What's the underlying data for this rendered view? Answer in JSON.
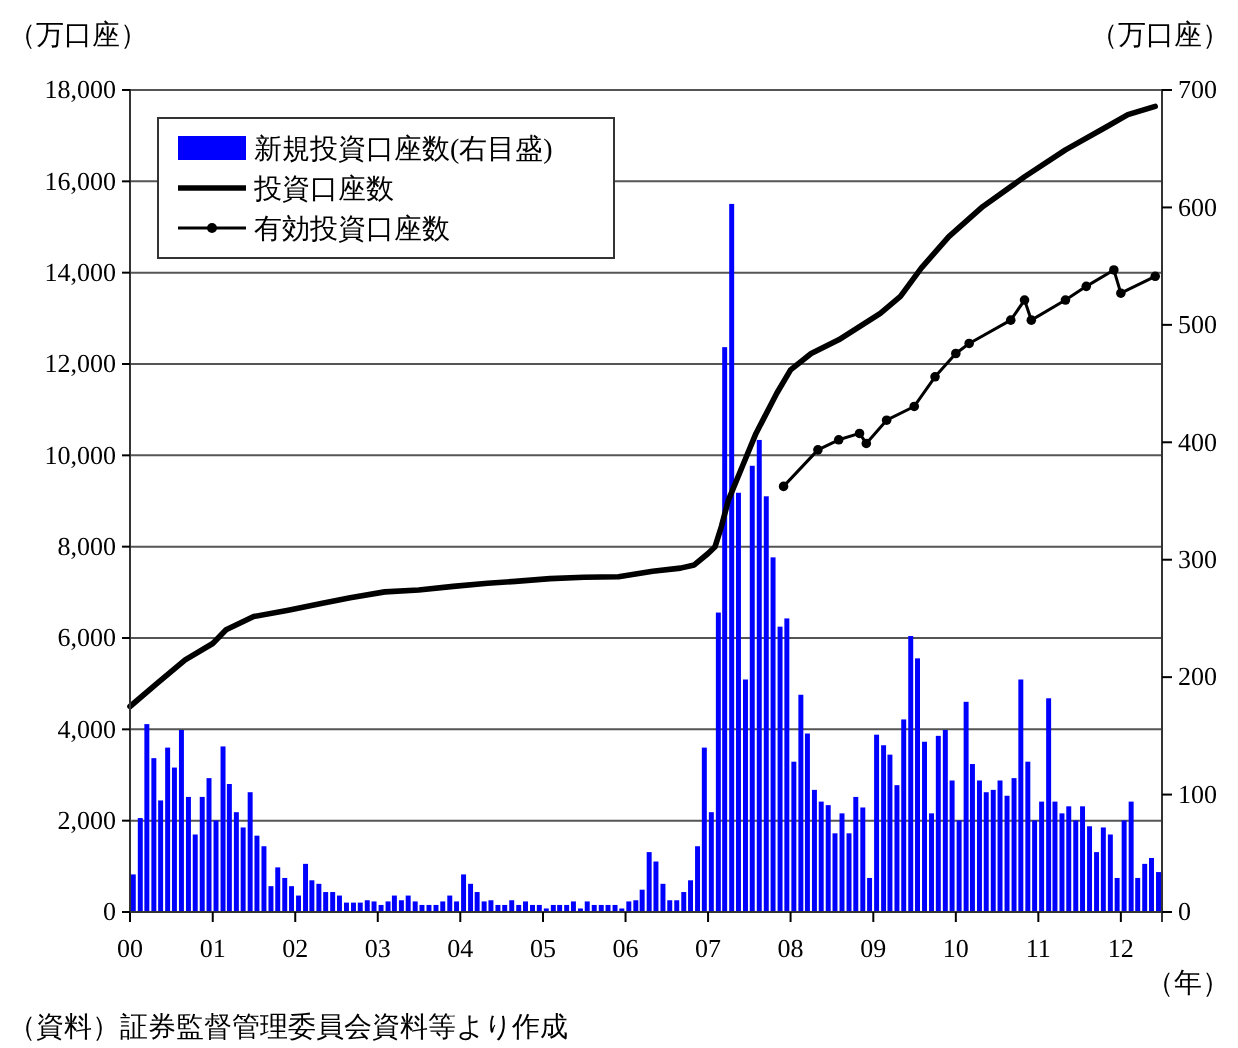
{
  "chart_data": {
    "type": "bar",
    "ylabel": "（万口座）",
    "y2label": "（万口座）",
    "xlabel": "（年）",
    "annotations": [
      "（資料）証券監督管理委員会資料等より作成"
    ],
    "xlim": [
      "2000-01",
      "2012-07"
    ],
    "xticks": [
      {
        "value": "2000-01",
        "label": "00"
      },
      {
        "value": "2001-01",
        "label": "01"
      },
      {
        "value": "2002-01",
        "label": "02"
      },
      {
        "value": "2003-01",
        "label": "03"
      },
      {
        "value": "2004-01",
        "label": "04"
      },
      {
        "value": "2005-01",
        "label": "05"
      },
      {
        "value": "2006-01",
        "label": "06"
      },
      {
        "value": "2007-01",
        "label": "07"
      },
      {
        "value": "2008-01",
        "label": "08"
      },
      {
        "value": "2009-01",
        "label": "09"
      },
      {
        "value": "2010-01",
        "label": "10"
      },
      {
        "value": "2011-01",
        "label": "11"
      },
      {
        "value": "2012-01",
        "label": "12"
      }
    ],
    "ylim": [
      0,
      18000
    ],
    "yticks": [
      0,
      {
        "value": 2000,
        "label": "2,000"
      },
      {
        "value": 4000,
        "label": "4,000"
      },
      {
        "value": 6000,
        "label": "6,000"
      },
      {
        "value": 8000,
        "label": "8,000"
      },
      {
        "value": 10000,
        "label": "10,000"
      },
      {
        "value": 12000,
        "label": "12,000"
      },
      {
        "value": 14000,
        "label": "14,000"
      },
      {
        "value": 16000,
        "label": "16,000"
      },
      {
        "value": 18000,
        "label": "18,000"
      }
    ],
    "y2lim": [
      0,
      700
    ],
    "y2ticks": [
      0,
      100,
      200,
      300,
      400,
      500,
      600,
      700
    ],
    "grid": "y",
    "legend": "top left",
    "series": [
      {
        "name": "新規投資口座数(右目盛)",
        "axis": "y2",
        "color": "#0000ff",
        "x": [
          "2000-01",
          "2000-02",
          "2000-03",
          "2000-04",
          "2000-05",
          "2000-06",
          "2000-07",
          "2000-08",
          "2000-09",
          "2000-10",
          "2000-11",
          "2000-12",
          "2001-01",
          "2001-02",
          "2001-03",
          "2001-04",
          "2001-05",
          "2001-06",
          "2001-07",
          "2001-08",
          "2001-09",
          "2001-10",
          "2001-11",
          "2001-12",
          "2002-01",
          "2002-02",
          "2002-03",
          "2002-04",
          "2002-05",
          "2002-06",
          "2002-07",
          "2002-08",
          "2002-09",
          "2002-10",
          "2002-11",
          "2002-12",
          "2003-01",
          "2003-02",
          "2003-03",
          "2003-04",
          "2003-05",
          "2003-06",
          "2003-07",
          "2003-08",
          "2003-09",
          "2003-10",
          "2003-11",
          "2003-12",
          "2004-01",
          "2004-02",
          "2004-03",
          "2004-04",
          "2004-05",
          "2004-06",
          "2004-07",
          "2004-08",
          "2004-09",
          "2004-10",
          "2004-11",
          "2004-12",
          "2005-01",
          "2005-02",
          "2005-03",
          "2005-04",
          "2005-05",
          "2005-06",
          "2005-07",
          "2005-08",
          "2005-09",
          "2005-10",
          "2005-11",
          "2005-12",
          "2006-01",
          "2006-02",
          "2006-03",
          "2006-04",
          "2006-05",
          "2006-06",
          "2006-07",
          "2006-08",
          "2006-09",
          "2006-10",
          "2006-11",
          "2006-12",
          "2007-01",
          "2007-02",
          "2007-03",
          "2007-04",
          "2007-05",
          "2007-06",
          "2007-07",
          "2007-08",
          "2007-09",
          "2007-10",
          "2007-11",
          "2007-12",
          "2008-01",
          "2008-02",
          "2008-03",
          "2008-04",
          "2008-05",
          "2008-06",
          "2008-07",
          "2008-08",
          "2008-09",
          "2008-10",
          "2008-11",
          "2008-12",
          "2009-01",
          "2009-02",
          "2009-03",
          "2009-04",
          "2009-05",
          "2009-06",
          "2009-07",
          "2009-08",
          "2009-09",
          "2009-10",
          "2009-11",
          "2009-12",
          "2010-01",
          "2010-02",
          "2010-03",
          "2010-04",
          "2010-05",
          "2010-06",
          "2010-07",
          "2010-08",
          "2010-09",
          "2010-10",
          "2010-11",
          "2010-12",
          "2011-01",
          "2011-02",
          "2011-03",
          "2011-04",
          "2011-05",
          "2011-06",
          "2011-07",
          "2011-08",
          "2011-09",
          "2011-10",
          "2011-11",
          "2011-12",
          "2012-01",
          "2012-02",
          "2012-03",
          "2012-04",
          "2012-05",
          "2012-06"
        ],
        "values": [
          32,
          80,
          160,
          131,
          95,
          140,
          123,
          155,
          98,
          66,
          98,
          114,
          78,
          141,
          109,
          85,
          72,
          102,
          65,
          56,
          22,
          38,
          29,
          22,
          14,
          41,
          27,
          24,
          17,
          17,
          14,
          8,
          8,
          8,
          10,
          9,
          6,
          9,
          14,
          10,
          14,
          9,
          6,
          6,
          6,
          9,
          14,
          9,
          32,
          24,
          17,
          9,
          10,
          6,
          6,
          10,
          6,
          9,
          6,
          6,
          3,
          6,
          6,
          6,
          9,
          3,
          9,
          6,
          6,
          6,
          6,
          3,
          9,
          10,
          19,
          51,
          43,
          24,
          10,
          10,
          17,
          27,
          56,
          140,
          85,
          255,
          481,
          603,
          357,
          198,
          380,
          402,
          354,
          302,
          243,
          250,
          128,
          185,
          152,
          104,
          94,
          91,
          67,
          84,
          67,
          98,
          89,
          29,
          151,
          142,
          134,
          108,
          164,
          235,
          216,
          145,
          84,
          150,
          155,
          112,
          78,
          179,
          126,
          112,
          102,
          104,
          112,
          99,
          114,
          198,
          128,
          78,
          94,
          182,
          94,
          84,
          90,
          78,
          90,
          73,
          51,
          72,
          66,
          29,
          78,
          94,
          29,
          41,
          46,
          34
        ]
      },
      {
        "name": "投資口座数",
        "type": "line",
        "color": "#000000",
        "x": [
          "2000-01",
          "2000-05",
          "2000-09",
          "2001-01",
          "2001-03",
          "2001-07",
          "2001-12",
          "2002-05",
          "2002-09",
          "2003-02",
          "2003-07",
          "2003-12",
          "2004-05",
          "2004-09",
          "2005-02",
          "2005-07",
          "2005-12",
          "2006-05",
          "2006-09",
          "2006-11",
          "2007-01",
          "2007-02",
          "2007-03",
          "2007-04",
          "2007-06",
          "2007-08",
          "2007-11",
          "2008-01",
          "2008-04",
          "2008-08",
          "2008-11",
          "2009-02",
          "2009-05",
          "2009-08",
          "2009-12",
          "2010-05",
          "2010-11",
          "2011-05",
          "2011-11",
          "2012-02",
          "2012-06"
        ],
        "values": [
          4500,
          5010,
          5520,
          5880,
          6180,
          6470,
          6610,
          6760,
          6880,
          7010,
          7050,
          7130,
          7200,
          7240,
          7300,
          7330,
          7340,
          7460,
          7530,
          7600,
          7850,
          8000,
          8440,
          9020,
          9750,
          10480,
          11360,
          11870,
          12230,
          12530,
          12820,
          13110,
          13480,
          14100,
          14790,
          15450,
          16100,
          16690,
          17200,
          17460,
          17640
        ]
      },
      {
        "name": "有効投資口座数",
        "type": "line",
        "color": "#000000",
        "marker": "circle",
        "x": [
          "2007-12",
          "2008-05",
          "2008-08",
          "2008-11",
          "2008-12",
          "2009-03",
          "2009-07",
          "2009-10",
          "2010-01",
          "2010-03",
          "2010-09",
          "2010-11",
          "2010-12",
          "2011-05",
          "2011-08",
          "2011-12",
          "2012-01",
          "2012-06"
        ],
        "values": [
          9320,
          10120,
          10340,
          10480,
          10260,
          10770,
          11070,
          11720,
          12230,
          12450,
          12960,
          13400,
          12960,
          13400,
          13700,
          14060,
          13550,
          13920
        ]
      }
    ]
  }
}
